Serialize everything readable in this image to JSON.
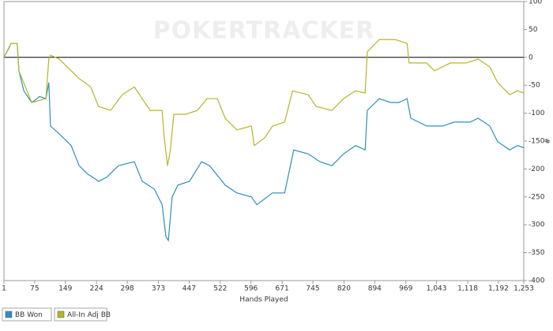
{
  "chart_data": {
    "type": "line",
    "watermark": "POKERTRACKER",
    "x_label": "Hands Played",
    "y_label": "#",
    "xlim": [
      1,
      1253
    ],
    "ylim": [
      -400,
      100
    ],
    "xticks": [
      1,
      75,
      149,
      224,
      298,
      373,
      447,
      522,
      596,
      671,
      745,
      820,
      894,
      969,
      {
        "value": 1043,
        "label": "1,043"
      },
      {
        "value": 1118,
        "label": "1,118"
      },
      {
        "value": 1192,
        "label": "1,192"
      },
      {
        "value": 1253,
        "label": "1,253"
      }
    ],
    "yticks": [
      -400,
      -350,
      -300,
      -250,
      -200,
      -150,
      -100,
      -50,
      0,
      50,
      100
    ],
    "series": [
      {
        "name": "BB Won",
        "color": "#2e8fc0",
        "x": [
          1,
          14,
          18,
          33,
          37,
          49,
          68,
          87,
          102,
          109,
          113,
          134,
          163,
          182,
          201,
          229,
          248,
          277,
          315,
          334,
          363,
          382,
          391,
          397,
          406,
          420,
          448,
          477,
          496,
          534,
          562,
          597,
          610,
          648,
          677,
          699,
          734,
          762,
          791,
          819,
          848,
          871,
          876,
          905,
          933,
          952,
          972,
          981,
          1019,
          1057,
          1086,
          1124,
          1143,
          1171,
          1190,
          1219,
          1238,
          1253
        ],
        "values": [
          0,
          18,
          25,
          25,
          -24,
          -60,
          -81,
          -70,
          -74,
          -45,
          -123,
          -137,
          -158,
          -194,
          -208,
          -222,
          -215,
          -194,
          -187,
          -222,
          -236,
          -264,
          -321,
          -328,
          -250,
          -229,
          -222,
          -187,
          -194,
          -229,
          -243,
          -250,
          -264,
          -243,
          -243,
          -166,
          -173,
          -187,
          -194,
          -173,
          -158,
          -166,
          -95,
          -74,
          -81,
          -81,
          -74,
          -109,
          -123,
          -123,
          -116,
          -116,
          -109,
          -123,
          -151,
          -166,
          -158,
          -162
        ]
      },
      {
        "name": "All-In Adj BB",
        "color": "#b5b52a",
        "x": [
          1,
          18,
          33,
          37,
          68,
          102,
          109,
          113,
          134,
          163,
          182,
          210,
          229,
          258,
          286,
          315,
          334,
          353,
          382,
          387,
          395,
          402,
          410,
          439,
          467,
          490,
          515,
          534,
          562,
          597,
          604,
          629,
          648,
          677,
          696,
          734,
          753,
          791,
          819,
          848,
          871,
          876,
          905,
          943,
          972,
          977,
          1019,
          1038,
          1076,
          1114,
          1143,
          1171,
          1190,
          1219,
          1238,
          1253
        ],
        "values": [
          0,
          25,
          25,
          -24,
          -81,
          -74,
          -3,
          4,
          -3,
          -24,
          -38,
          -53,
          -88,
          -95,
          -67,
          -53,
          -74,
          -95,
          -95,
          -144,
          -194,
          -166,
          -102,
          -102,
          -95,
          -74,
          -74,
          -109,
          -130,
          -123,
          -158,
          -144,
          -123,
          -116,
          -60,
          -67,
          -88,
          -95,
          -74,
          -60,
          -64,
          10,
          32,
          32,
          25,
          -10,
          -10,
          -24,
          -10,
          -10,
          -3,
          -17,
          -45,
          -67,
          -60,
          -64
        ]
      }
    ]
  }
}
